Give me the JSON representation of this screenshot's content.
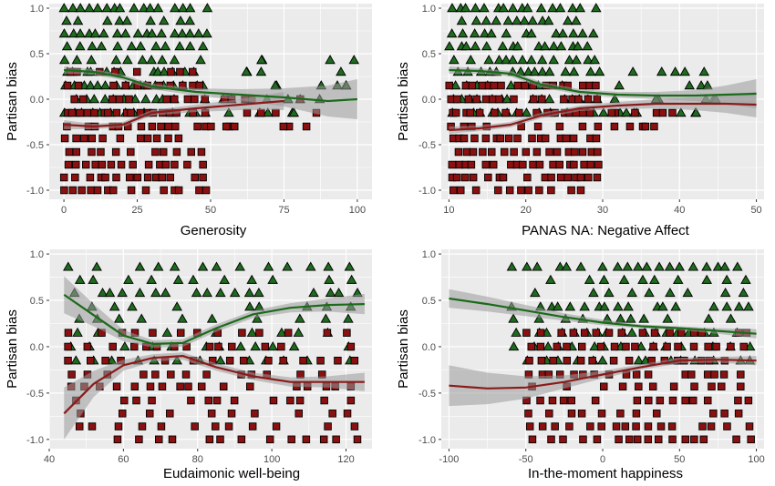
{
  "colors": {
    "panel_bg": "#ebebeb",
    "grid": "#ffffff",
    "triangle_fill": "#1e6b1e",
    "square_fill": "#8b1010",
    "marker_stroke": "#000000",
    "green_line": "#1a6b1a",
    "red_line": "#8b1a1a",
    "ribbon": "#9a9a9a"
  },
  "chart_data": [
    {
      "type": "scatter",
      "xlabel": "Generosity",
      "ylabel": "Partisan bias",
      "xlim": [
        -5,
        105
      ],
      "ylim": [
        -1.1,
        1.05
      ],
      "xticks": [
        0,
        25,
        50,
        75,
        100
      ],
      "xtick_labels": [
        "0",
        "25",
        "50",
        "75",
        "100"
      ],
      "yticks": [
        -1.0,
        -0.5,
        0.0,
        0.5,
        1.0
      ],
      "ytick_labels": [
        "-1.0",
        "-0.5",
        "0.0",
        "0.5",
        "1.0"
      ],
      "grid": true,
      "series": [
        {
          "marker": "triangle",
          "x_range": [
            0,
            50
          ],
          "x_tail_max": 100,
          "y_values": [
            -0.15,
            0.0,
            0.15,
            0.3,
            0.43,
            0.58,
            0.72,
            0.86,
            1.0
          ],
          "tail_y_values": [
            -0.15,
            0.0,
            0.15,
            0.3,
            0.43
          ]
        },
        {
          "marker": "square",
          "x_range": [
            0,
            50
          ],
          "x_tail_max": 90,
          "y_values": [
            -1.0,
            -0.86,
            -0.72,
            -0.58,
            -0.43,
            -0.3,
            -0.15,
            0.0,
            0.15,
            0.3
          ],
          "tail_y_values": [
            -0.3,
            -0.15,
            0.0
          ]
        }
      ],
      "fits": [
        {
          "marker": "triangle",
          "x": [
            0,
            10,
            20,
            30,
            45,
            60,
            75,
            90,
            100
          ],
          "y": [
            0.32,
            0.3,
            0.24,
            0.14,
            0.08,
            0.05,
            0.02,
            -0.02,
            0.0
          ],
          "ci_width": [
            0.04,
            0.03,
            0.03,
            0.03,
            0.04,
            0.06,
            0.1,
            0.17,
            0.22
          ]
        },
        {
          "marker": "square",
          "x": [
            0,
            10,
            20,
            30,
            45,
            60,
            75
          ],
          "y": [
            -0.28,
            -0.3,
            -0.28,
            -0.15,
            -0.1,
            -0.06,
            -0.02
          ],
          "ci_width": [
            0.05,
            0.03,
            0.03,
            0.03,
            0.04,
            0.06,
            0.1
          ]
        }
      ]
    },
    {
      "type": "scatter",
      "xlabel": "PANAS NA: Negative Affect",
      "ylabel": "Partisan bias",
      "xlim": [
        9,
        51
      ],
      "ylim": [
        -1.1,
        1.05
      ],
      "xticks": [
        10,
        20,
        30,
        40,
        50
      ],
      "xtick_labels": [
        "10",
        "20",
        "30",
        "40",
        "50"
      ],
      "yticks": [
        -1.0,
        -0.5,
        0.0,
        0.5,
        1.0
      ],
      "ytick_labels": [
        "-1.0",
        "-0.5",
        "0.0",
        "0.5",
        "1.0"
      ],
      "grid": true,
      "series": [
        {
          "marker": "triangle",
          "x_range": [
            10,
            30
          ],
          "x_tail_max": 45,
          "y_values": [
            -0.15,
            0.0,
            0.15,
            0.3,
            0.43,
            0.58,
            0.72,
            0.86,
            1.0
          ],
          "tail_y_values": [
            -0.15,
            0.0,
            0.15,
            0.3
          ]
        },
        {
          "marker": "square",
          "x_range": [
            10,
            30
          ],
          "x_tail_max": 40,
          "y_values": [
            -1.0,
            -0.86,
            -0.72,
            -0.58,
            -0.43,
            -0.3,
            -0.15,
            0.0,
            0.15
          ],
          "tail_y_values": [
            -0.3,
            -0.15
          ]
        }
      ],
      "fits": [
        {
          "marker": "triangle",
          "x": [
            10,
            14,
            18,
            22,
            27,
            32,
            37,
            42,
            46,
            50
          ],
          "y": [
            0.32,
            0.31,
            0.28,
            0.16,
            0.08,
            0.05,
            0.04,
            0.04,
            0.05,
            0.06
          ],
          "ci_width": [
            0.04,
            0.03,
            0.03,
            0.03,
            0.03,
            0.03,
            0.04,
            0.06,
            0.1,
            0.16
          ]
        },
        {
          "marker": "square",
          "x": [
            10,
            14,
            18,
            22,
            27,
            32,
            37,
            42,
            46,
            50
          ],
          "y": [
            -0.34,
            -0.32,
            -0.28,
            -0.18,
            -0.1,
            -0.07,
            -0.05,
            -0.05,
            -0.05,
            -0.06
          ],
          "ci_width": [
            0.04,
            0.03,
            0.03,
            0.03,
            0.03,
            0.04,
            0.05,
            0.07,
            0.1,
            0.14
          ]
        }
      ]
    },
    {
      "type": "scatter",
      "xlabel": "Eudaimonic well-being",
      "ylabel": "Partisan bias",
      "xlim": [
        40,
        127
      ],
      "ylim": [
        -1.1,
        1.05
      ],
      "xticks": [
        40,
        60,
        80,
        100,
        120
      ],
      "xtick_labels": [
        "40",
        "60",
        "80",
        "100",
        "120"
      ],
      "yticks": [
        -1.0,
        -0.5,
        0.0,
        0.5,
        1.0
      ],
      "ytick_labels": [
        "-1.0",
        "-0.5",
        "0.0",
        "0.5",
        "1.0"
      ],
      "grid": true,
      "series": [
        {
          "marker": "triangle",
          "x_range": [
            45,
            125
          ],
          "x_tail_max": 125,
          "y_values": [
            -0.15,
            0.0,
            0.15,
            0.3,
            0.43,
            0.58,
            0.72,
            0.86
          ],
          "tail_y_values": []
        },
        {
          "marker": "square",
          "x_range": [
            45,
            125
          ],
          "x_tail_max": 125,
          "y_values": [
            -1.0,
            -0.86,
            -0.72,
            -0.58,
            -0.43,
            -0.3,
            -0.15,
            0.0,
            0.15
          ],
          "tail_y_values": []
        }
      ],
      "fits": [
        {
          "marker": "triangle",
          "x": [
            44,
            52,
            60,
            68,
            76,
            85,
            95,
            105,
            115,
            125
          ],
          "y": [
            0.56,
            0.34,
            0.12,
            0.03,
            0.04,
            0.2,
            0.35,
            0.42,
            0.45,
            0.46
          ],
          "ci_width": [
            0.2,
            0.12,
            0.06,
            0.04,
            0.04,
            0.04,
            0.04,
            0.05,
            0.07,
            0.11
          ]
        },
        {
          "marker": "square",
          "x": [
            44,
            52,
            60,
            68,
            76,
            85,
            95,
            105,
            115,
            125
          ],
          "y": [
            -0.72,
            -0.4,
            -0.2,
            -0.12,
            -0.1,
            -0.22,
            -0.32,
            -0.38,
            -0.38,
            -0.38
          ],
          "ci_width": [
            0.28,
            0.14,
            0.06,
            0.04,
            0.04,
            0.04,
            0.04,
            0.05,
            0.06,
            0.1
          ]
        }
      ]
    },
    {
      "type": "scatter",
      "xlabel": "In-the-moment happiness",
      "ylabel": "Partisan bias",
      "xlim": [
        -105,
        105
      ],
      "ylim": [
        -1.1,
        1.05
      ],
      "xticks": [
        -100,
        -50,
        0,
        50,
        100
      ],
      "xtick_labels": [
        "-100",
        "-50",
        "0",
        "50",
        "100"
      ],
      "yticks": [
        -1.0,
        -0.5,
        0.0,
        0.5,
        1.0
      ],
      "ytick_labels": [
        "-1.0",
        "-0.5",
        "0.0",
        "0.5",
        "1.0"
      ],
      "grid": true,
      "series": [
        {
          "marker": "triangle",
          "x_range": [
            -60,
            100
          ],
          "x_tail_max": 100,
          "y_values": [
            -0.15,
            0.0,
            0.15,
            0.3,
            0.43,
            0.58,
            0.72,
            0.86
          ],
          "tail_y_values": []
        },
        {
          "marker": "square",
          "x_range": [
            -50,
            100
          ],
          "x_tail_max": 100,
          "y_values": [
            -1.0,
            -0.86,
            -0.72,
            -0.58,
            -0.43,
            -0.3,
            -0.15,
            0.0,
            0.15
          ],
          "tail_y_values": []
        }
      ],
      "fits": [
        {
          "marker": "triangle",
          "x": [
            -100,
            -75,
            -50,
            -25,
            0,
            25,
            50,
            75,
            100
          ],
          "y": [
            0.52,
            0.46,
            0.39,
            0.32,
            0.26,
            0.22,
            0.2,
            0.17,
            0.14
          ],
          "ci_width": [
            0.1,
            0.08,
            0.06,
            0.04,
            0.03,
            0.02,
            0.02,
            0.03,
            0.05
          ]
        },
        {
          "marker": "square",
          "x": [
            -100,
            -75,
            -50,
            -25,
            0,
            25,
            50,
            75,
            100
          ],
          "y": [
            -0.42,
            -0.45,
            -0.44,
            -0.38,
            -0.3,
            -0.22,
            -0.15,
            -0.14,
            -0.15
          ],
          "ci_width": [
            0.22,
            0.17,
            0.12,
            0.07,
            0.04,
            0.03,
            0.03,
            0.03,
            0.05
          ]
        }
      ]
    }
  ]
}
